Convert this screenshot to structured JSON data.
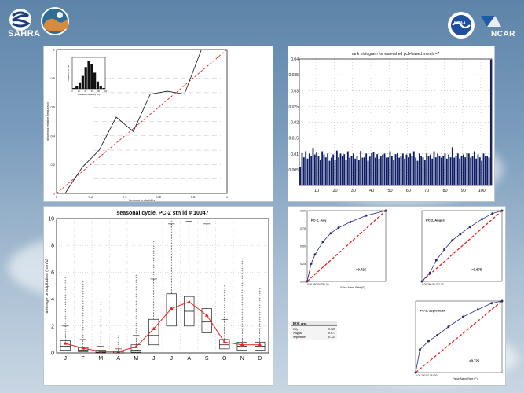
{
  "header": {
    "sahra_label": "SAHRA",
    "ncar_label": "NCAR",
    "noaa_label": "NOAA"
  },
  "colors": {
    "accent_red": "#e8221e",
    "bar_navy": "#0f1e66",
    "line_blue": "#2b2f7a"
  },
  "chart_data": [
    {
      "type": "line",
      "title": "",
      "xlabel": "forecast probability",
      "ylabel": "observed relative frequency",
      "xlim": [
        0,
        1
      ],
      "ylim": [
        0,
        1
      ],
      "x_ticks": [
        "0",
        "0.2",
        "0.4",
        "0.6",
        "0.8",
        "1"
      ],
      "y_ticks": [
        "0",
        "0.2",
        "0.4",
        "0.6",
        "0.8",
        "1"
      ],
      "series": [
        {
          "values": [
            [
              0.05,
              0.0
            ],
            [
              0.15,
              0.18
            ],
            [
              0.25,
              0.3
            ],
            [
              0.35,
              0.53
            ],
            [
              0.45,
              0.43
            ],
            [
              0.55,
              0.69
            ],
            [
              0.65,
              0.71
            ],
            [
              0.75,
              0.69
            ],
            [
              0.85,
              1.0
            ]
          ]
        },
        {
          "values": [
            [
              0,
              0
            ],
            [
              1,
              1
            ]
          ]
        }
      ],
      "inset": {
        "type": "bar",
        "xlabel": "forecast probability (%)",
        "ylabel": "frequency of use",
        "x_ticks": [
          "0",
          "20",
          "40",
          "60",
          "80",
          "100"
        ],
        "values": [
          1,
          3,
          8,
          16,
          27,
          35,
          31,
          20,
          9,
          3,
          1
        ]
      }
    },
    {
      "type": "bar",
      "title": "rank histogram for watershed pcb-based month =7",
      "xlim": [
        0,
        105
      ],
      "ylim": [
        0,
        0.04
      ],
      "x_ticks": [
        "10",
        "20",
        "30",
        "40",
        "50",
        "60",
        "70",
        "80",
        "90",
        "100"
      ],
      "y_ticks": [
        "0.005",
        "0.01",
        "0.015",
        "0.02",
        "0.025",
        "0.03",
        "0.035",
        "0.04"
      ],
      "values": [
        0.0058,
        0.0102,
        0.0089,
        0.0108,
        0.0085,
        0.0101,
        0.0092,
        0.0119,
        0.0098,
        0.0104,
        0.0092,
        0.0082,
        0.0108,
        0.0098,
        0.0089,
        0.0101,
        0.0078,
        0.0088,
        0.0098,
        0.0082,
        0.011,
        0.0089,
        0.0101,
        0.0092,
        0.0099,
        0.0082,
        0.0108,
        0.0088,
        0.0094,
        0.0101,
        0.0085,
        0.0092,
        0.0081,
        0.0109,
        0.0088,
        0.0089,
        0.0101,
        0.0078,
        0.0091,
        0.0102,
        0.0105,
        0.0088,
        0.0099,
        0.0085,
        0.0092,
        0.0098,
        0.0101,
        0.0088,
        0.0089,
        0.0108,
        0.0094,
        0.0081,
        0.0099,
        0.0102,
        0.0088,
        0.0092,
        0.0101,
        0.0085,
        0.0098,
        0.0089,
        0.0101,
        0.0092,
        0.0108,
        0.0088,
        0.0078,
        0.0101,
        0.0094,
        0.0089,
        0.0082,
        0.0101,
        0.0092,
        0.0098,
        0.0085,
        0.0108,
        0.0089,
        0.0101,
        0.0094,
        0.0088,
        0.0092,
        0.0101,
        0.0085,
        0.0098,
        0.0089,
        0.0121,
        0.0088,
        0.0092,
        0.0101,
        0.0085,
        0.0094,
        0.0098,
        0.0089,
        0.0102,
        0.0101,
        0.0088,
        0.0092,
        0.0108,
        0.0085,
        0.0098,
        0.0089,
        0.0078,
        0.0101,
        0.0092,
        0.0094,
        0.0088,
        0.0398
      ]
    },
    {
      "type": "box",
      "title": "seasonal cycle,  PC-2 stn id # 10047",
      "xlabel": "",
      "ylabel": "average precipitation (mm/d)",
      "ylim": [
        0,
        10
      ],
      "y_ticks": [
        "0",
        "2",
        "4",
        "6",
        "8",
        "10"
      ],
      "categories": [
        "J",
        "F",
        "M",
        "A",
        "M",
        "J",
        "J",
        "A",
        "S",
        "O",
        "N",
        "D"
      ],
      "medians": [
        0.5,
        0.2,
        0.05,
        0.0,
        0.2,
        1.3,
        3.2,
        3.1,
        2.3,
        0.6,
        0.5,
        0.5
      ],
      "q1": [
        0.2,
        0.1,
        0.0,
        0.0,
        0.05,
        0.6,
        2.0,
        2.0,
        1.5,
        0.3,
        0.2,
        0.2
      ],
      "q3": [
        0.9,
        0.4,
        0.2,
        0.1,
        0.6,
        2.5,
        4.4,
        4.2,
        3.3,
        1.0,
        0.8,
        0.8
      ],
      "whisker_high": [
        2.0,
        1.0,
        0.5,
        0.3,
        1.3,
        5.5,
        9.6,
        9.8,
        9.6,
        2.5,
        1.8,
        1.8
      ],
      "outlier_top": [
        5.6,
        5.3,
        4.0,
        1.3,
        5.8,
        8.3,
        10,
        10,
        10,
        5.0,
        7.0,
        4.8
      ],
      "mean_line": [
        0.7,
        0.35,
        0.1,
        0.1,
        0.45,
        1.8,
        3.3,
        3.8,
        2.8,
        0.8,
        0.6,
        0.6
      ]
    },
    {
      "type": "line",
      "title": "PC-2, July",
      "xlabel": "False Alarm Rate (F)",
      "ylim": [
        0,
        1
      ],
      "y_ticks": [
        "0.00",
        "0.25",
        "0.50",
        "0.75",
        "1.00"
      ],
      "x_tick_text": "0.00.250.50.751.00",
      "score_label": "=0.725",
      "values": [
        [
          0,
          0
        ],
        [
          0.05,
          0.25
        ],
        [
          0.1,
          0.38
        ],
        [
          0.2,
          0.56
        ],
        [
          0.3,
          0.68
        ],
        [
          0.4,
          0.76
        ],
        [
          0.55,
          0.84
        ],
        [
          0.75,
          0.93
        ],
        [
          1,
          1
        ]
      ]
    },
    {
      "type": "line",
      "title": "PC-2, August",
      "xlabel": "",
      "ylim": [
        0,
        1
      ],
      "x_tick_text": "0.00.250.50.751.00",
      "score_label": "=0.675",
      "values": [
        [
          0,
          0
        ],
        [
          0.1,
          0.12
        ],
        [
          0.18,
          0.3
        ],
        [
          0.28,
          0.45
        ],
        [
          0.38,
          0.58
        ],
        [
          0.48,
          0.67
        ],
        [
          0.6,
          0.77
        ],
        [
          0.75,
          0.88
        ],
        [
          0.88,
          0.96
        ],
        [
          1,
          1
        ]
      ]
    },
    {
      "type": "line",
      "title": "PC-2, September",
      "xlabel": "False Alarm Rate (F)",
      "ylim": [
        0,
        1
      ],
      "x_tick_text": "0.00.250.50.751.00",
      "score_label": "=0.725",
      "values": [
        [
          0,
          0
        ],
        [
          0.05,
          0.32
        ],
        [
          0.15,
          0.44
        ],
        [
          0.25,
          0.52
        ],
        [
          0.38,
          0.64
        ],
        [
          0.55,
          0.78
        ],
        [
          0.72,
          0.88
        ],
        [
          0.88,
          0.97
        ],
        [
          1,
          1
        ]
      ]
    }
  ],
  "roc_table": {
    "header": "ROC area",
    "rows": [
      {
        "month": "July",
        "value": "0.725"
      },
      {
        "month": "August",
        "value": "0.675"
      },
      {
        "month": "September",
        "value": "0.725"
      }
    ]
  }
}
